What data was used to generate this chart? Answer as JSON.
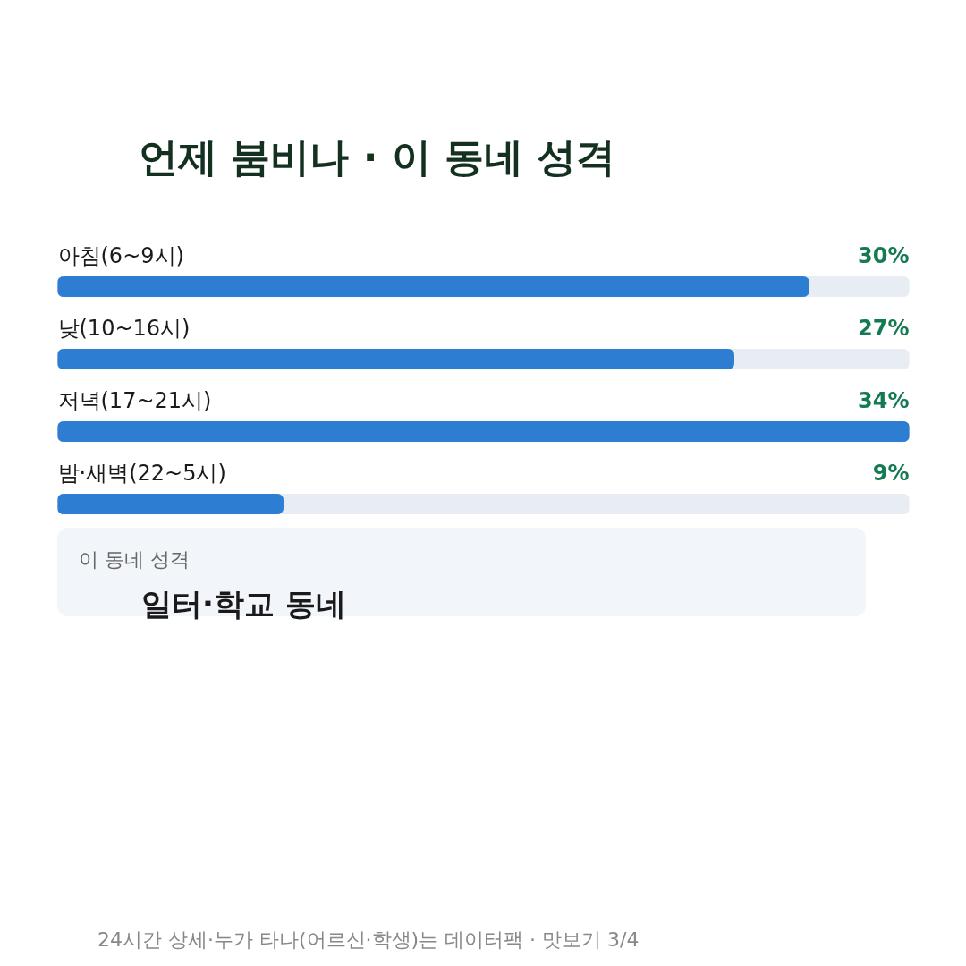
{
  "chart_data": {
    "type": "bar",
    "orientation": "horizontal",
    "title": "언제 붐비나 · 이 동네 성격",
    "categories": [
      "아침(6~9시)",
      "낮(10~16시)",
      "저녁(17~21시)",
      "밤·새벽(22~5시)"
    ],
    "values": [
      30,
      27,
      34,
      9
    ],
    "value_labels": [
      "30%",
      "27%",
      "34%",
      "9%"
    ],
    "color": "#2d7dd2",
    "xlim": [
      0,
      34
    ],
    "tick_labels": false,
    "grid": false,
    "annotations": [
      "이 동네 성격",
      "일터·학교 동네",
      "24시간 상세·누가 타나(어르신·학생)는 데이터팩 · 맛보기 3/4"
    ]
  }
}
